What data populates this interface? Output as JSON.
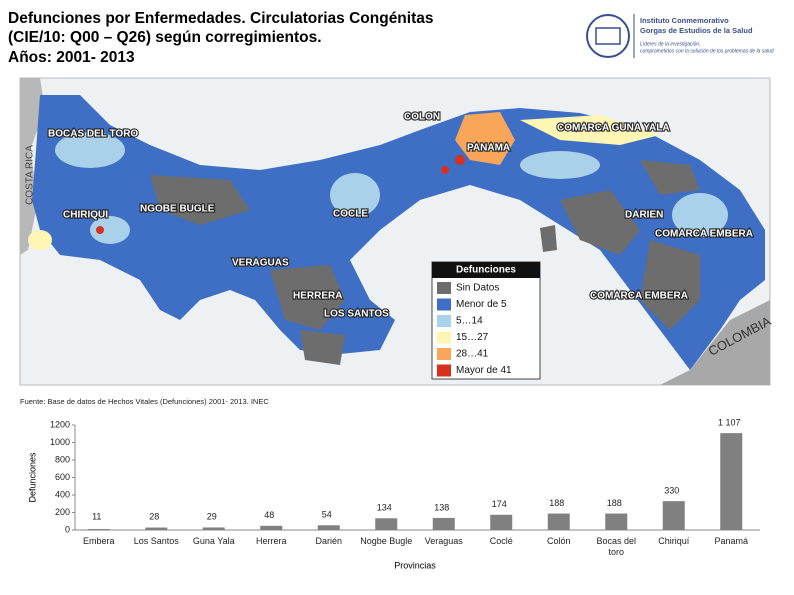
{
  "title": [
    "Defunciones por Enfermedades. Circulatorias Congénitas",
    "(CIE/10: Q00 – Q26) según corregimientos.",
    "Años: 2001- 2013"
  ],
  "logo": {
    "name": [
      "Instituto Conmemorativo",
      "Gorgas de Estudios de la Salud"
    ],
    "tagline": [
      "Líderes de la investigación,",
      "comprometidos con la solución de los problemas de la salud"
    ]
  },
  "map": {
    "labels": [
      "BOCAS DEL TORO",
      "COSTA RICA",
      "COLON",
      "PANAMA",
      "COMARCA GUNA YALA",
      "CHIRIQUI",
      "NGOBE BUGLE",
      "COCLE",
      "DARIEN",
      "COMARCA EMBERA",
      "VERAGUAS",
      "HERRERA",
      "LOS SANTOS",
      "COMARCA EMBERA",
      "COLOMBIA"
    ],
    "legend": {
      "title": "Defunciones",
      "items": [
        {
          "label": "Sin Datos",
          "color": "#6d6d6d"
        },
        {
          "label": "Menor de 5",
          "color": "#3e6fc4"
        },
        {
          "label": "5…14",
          "color": "#a9d1ea"
        },
        {
          "label": "15…27",
          "color": "#fdf5b4"
        },
        {
          "label": "28…41",
          "color": "#f9a65a"
        },
        {
          "label": "Mayor de 41",
          "color": "#d7301f"
        }
      ]
    }
  },
  "source": "Fuente: Base de datos de Hechos Vitales (Defunciones) 2001- 2013. INEC",
  "chart_data": {
    "type": "bar",
    "categories": [
      "Embera",
      "Los Santos",
      "Guna Yala",
      "Herrera",
      "Darién",
      "Nogbe Bugle",
      "Veraguas",
      "Coclé",
      "Colón",
      "Bocas del toro",
      "Chiriquí",
      "Panamá"
    ],
    "values": [
      11,
      28,
      29,
      48,
      54,
      134,
      138,
      174,
      188,
      188,
      330,
      1107
    ],
    "value_labels": [
      "11",
      "28",
      "29",
      "48",
      "54",
      "134",
      "138",
      "174",
      "188",
      "188",
      "330",
      "1 107"
    ],
    "color": "#808080",
    "ylim": [
      0,
      1200
    ],
    "yticks": [
      0,
      200,
      400,
      600,
      800,
      1000,
      1200
    ],
    "y_label": "Defunciones",
    "x_label": "Provincias"
  }
}
